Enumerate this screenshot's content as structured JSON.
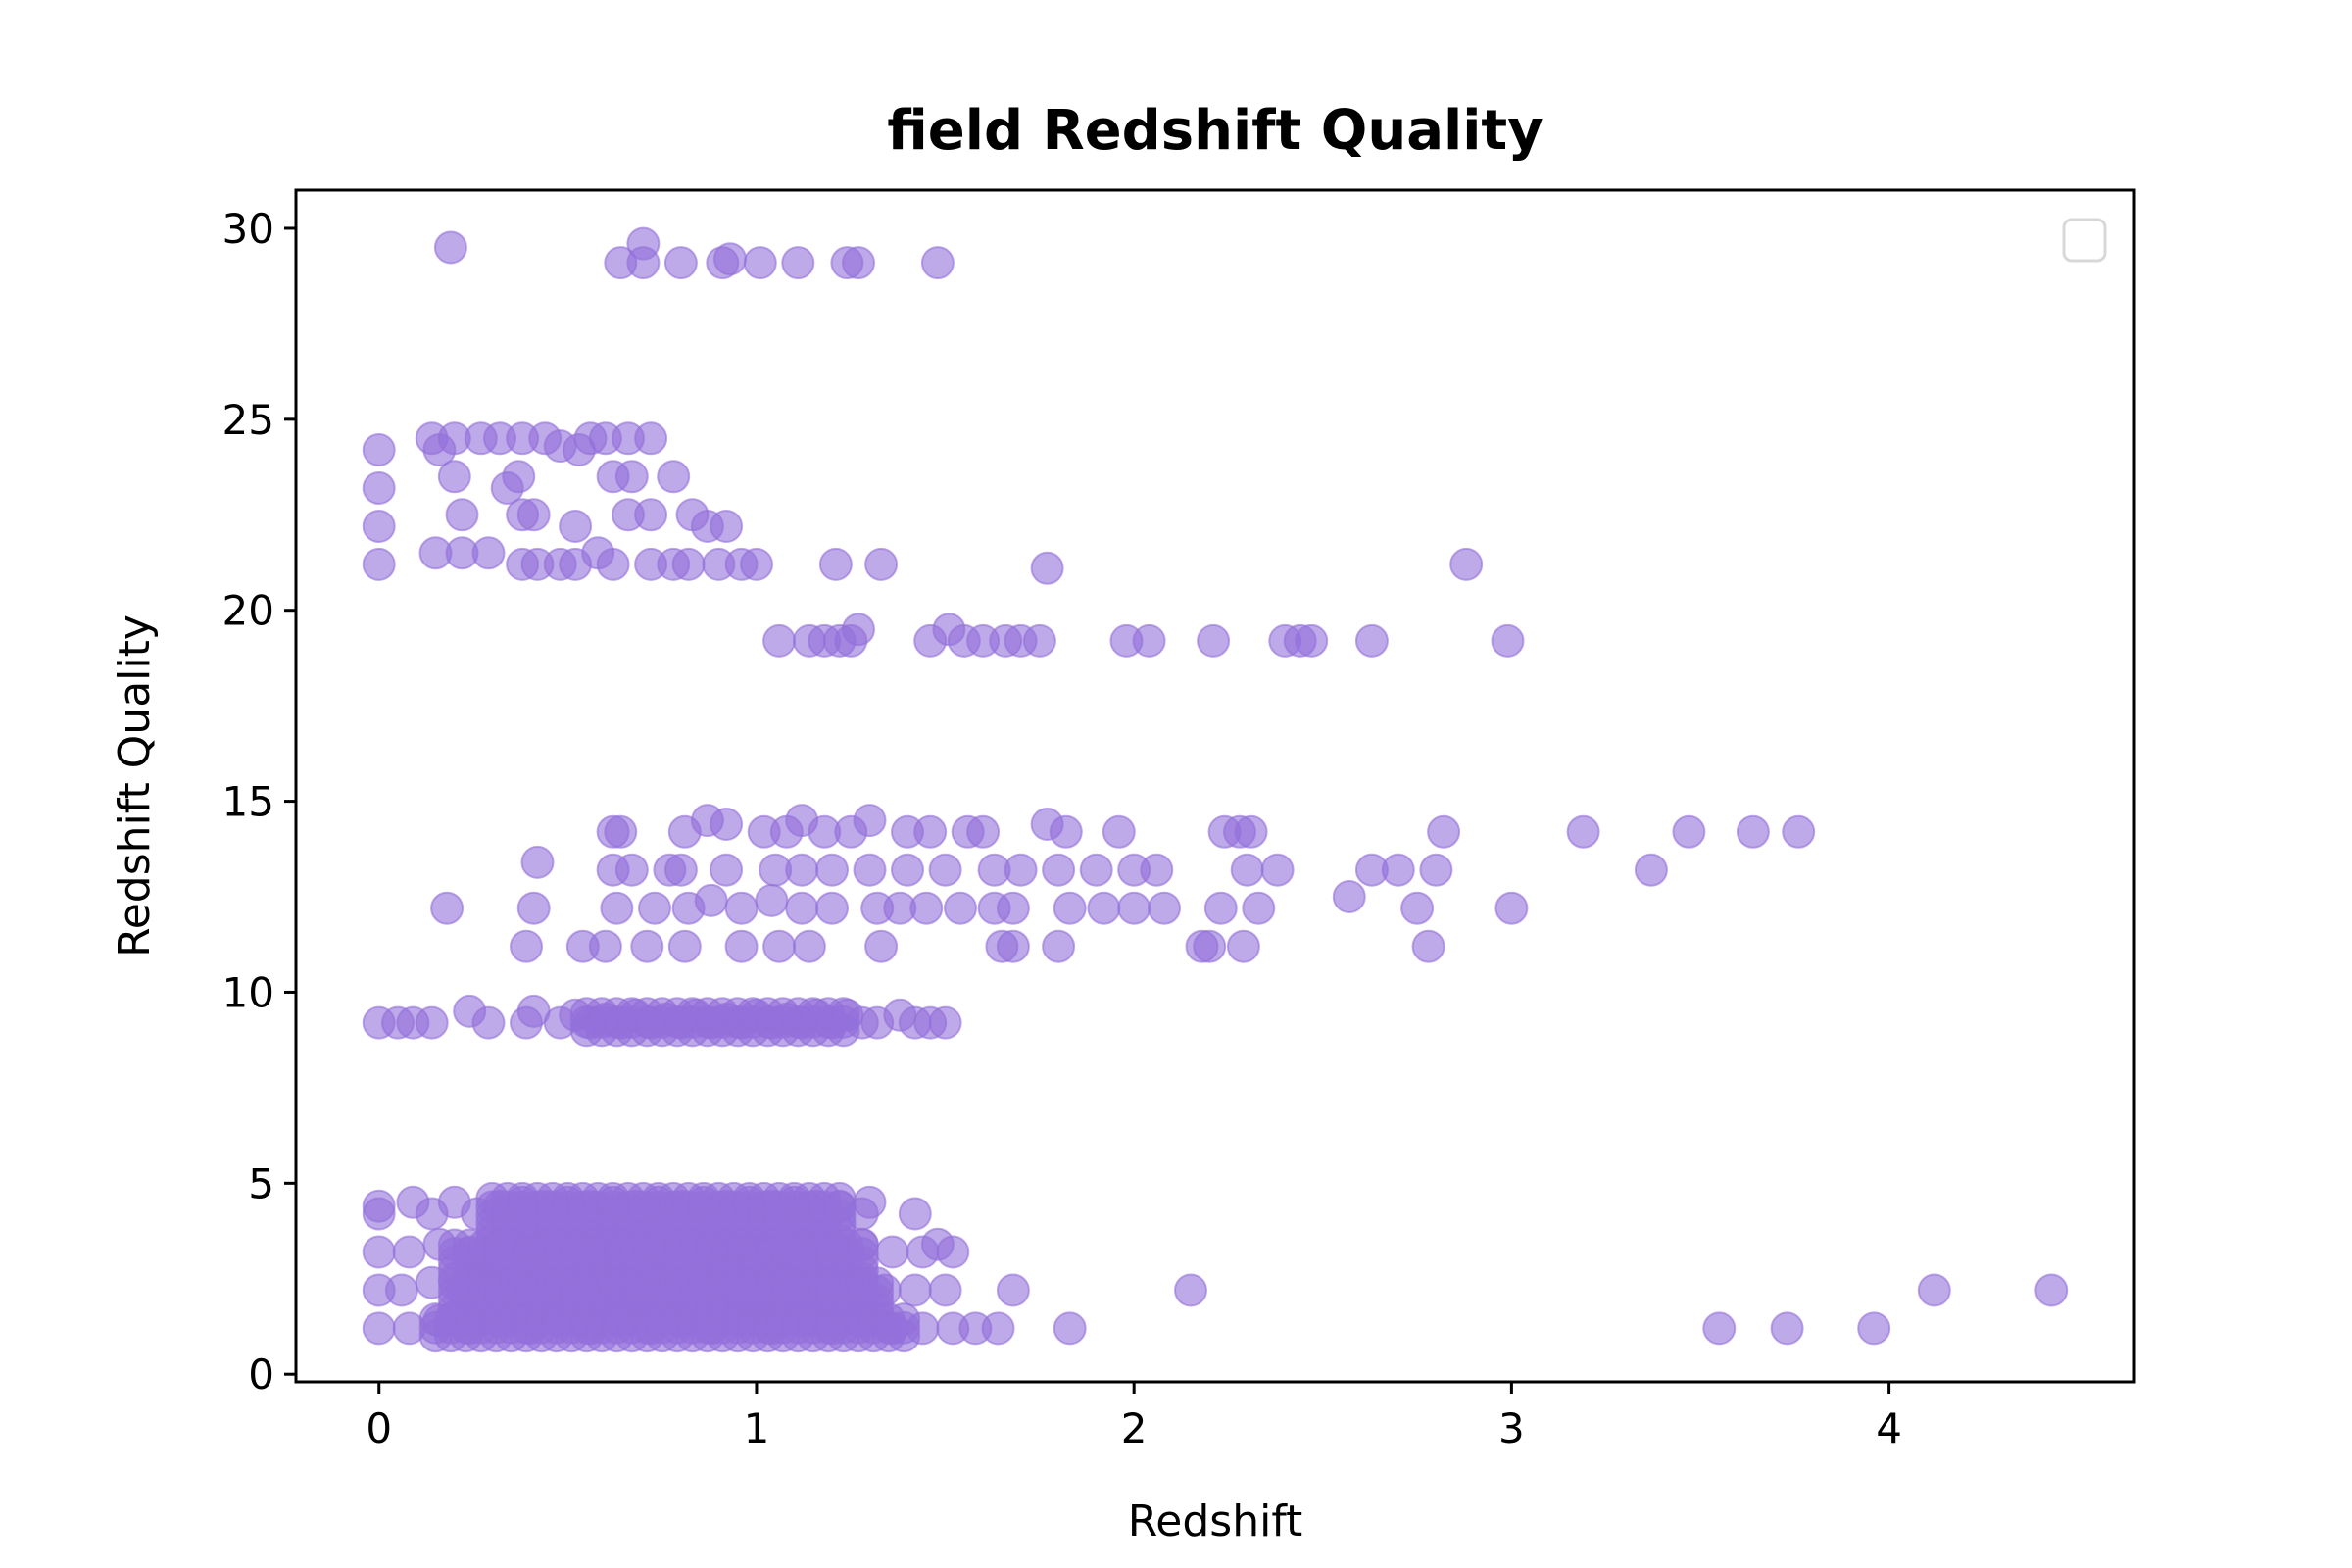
{
  "chart_data": {
    "type": "scatter",
    "title": "field Redshift Quality",
    "xlabel": "Redshift",
    "ylabel": "Redshift Quality",
    "xlim": [
      -0.22,
      4.65
    ],
    "ylim": [
      -0.2,
      31.0
    ],
    "xticks": [
      0,
      1,
      2,
      3,
      4
    ],
    "yticks": [
      0,
      5,
      10,
      15,
      20,
      25,
      30
    ],
    "grid": false,
    "legend": "top-right (empty)",
    "marker_color": "#9370DB",
    "marker_alpha": 0.6,
    "series": [
      {
        "points": [
          [
            0.19,
            29.5
          ],
          [
            0.64,
            29.1
          ],
          [
            0.7,
            29.6
          ],
          [
            0.7,
            29.1
          ],
          [
            0.8,
            29.1
          ],
          [
            0.91,
            29.1
          ],
          [
            0.93,
            29.2
          ],
          [
            1.01,
            29.1
          ],
          [
            1.11,
            29.1
          ],
          [
            1.24,
            29.1
          ],
          [
            1.27,
            29.1
          ],
          [
            1.48,
            29.1
          ],
          [
            0.0,
            24.2
          ],
          [
            0.0,
            23.2
          ],
          [
            0.0,
            22.2
          ],
          [
            0.0,
            21.2
          ],
          [
            0.14,
            24.5
          ],
          [
            0.16,
            24.2
          ],
          [
            0.2,
            24.5
          ],
          [
            0.27,
            24.5
          ],
          [
            0.32,
            24.5
          ],
          [
            0.38,
            24.5
          ],
          [
            0.44,
            24.5
          ],
          [
            0.48,
            24.3
          ],
          [
            0.53,
            24.2
          ],
          [
            0.56,
            24.5
          ],
          [
            0.6,
            24.5
          ],
          [
            0.66,
            24.5
          ],
          [
            0.72,
            24.5
          ],
          [
            0.2,
            23.5
          ],
          [
            0.34,
            23.2
          ],
          [
            0.37,
            23.5
          ],
          [
            0.62,
            23.5
          ],
          [
            0.67,
            23.5
          ],
          [
            0.78,
            23.5
          ],
          [
            0.22,
            22.5
          ],
          [
            0.38,
            22.5
          ],
          [
            0.41,
            22.5
          ],
          [
            0.52,
            22.2
          ],
          [
            0.66,
            22.5
          ],
          [
            0.72,
            22.5
          ],
          [
            0.83,
            22.5
          ],
          [
            0.87,
            22.2
          ],
          [
            0.92,
            22.2
          ],
          [
            0.15,
            21.5
          ],
          [
            0.22,
            21.5
          ],
          [
            0.29,
            21.5
          ],
          [
            0.38,
            21.2
          ],
          [
            0.42,
            21.2
          ],
          [
            0.48,
            21.2
          ],
          [
            0.52,
            21.2
          ],
          [
            0.58,
            21.5
          ],
          [
            0.62,
            21.2
          ],
          [
            0.72,
            21.2
          ],
          [
            0.78,
            21.2
          ],
          [
            0.82,
            21.2
          ],
          [
            0.9,
            21.2
          ],
          [
            0.96,
            21.2
          ],
          [
            1.0,
            21.2
          ],
          [
            1.21,
            21.2
          ],
          [
            1.33,
            21.2
          ],
          [
            1.77,
            21.1
          ],
          [
            2.88,
            21.2
          ],
          [
            1.06,
            19.2
          ],
          [
            1.14,
            19.2
          ],
          [
            1.18,
            19.2
          ],
          [
            1.22,
            19.2
          ],
          [
            1.25,
            19.2
          ],
          [
            1.27,
            19.5
          ],
          [
            1.46,
            19.2
          ],
          [
            1.51,
            19.5
          ],
          [
            1.55,
            19.2
          ],
          [
            1.6,
            19.2
          ],
          [
            1.66,
            19.2
          ],
          [
            1.7,
            19.2
          ],
          [
            1.75,
            19.2
          ],
          [
            1.98,
            19.2
          ],
          [
            2.04,
            19.2
          ],
          [
            2.21,
            19.2
          ],
          [
            2.4,
            19.2
          ],
          [
            2.44,
            19.2
          ],
          [
            2.47,
            19.2
          ],
          [
            2.63,
            19.2
          ],
          [
            2.99,
            19.2
          ],
          [
            0.62,
            14.2
          ],
          [
            0.64,
            14.2
          ],
          [
            0.81,
            14.2
          ],
          [
            0.87,
            14.5
          ],
          [
            0.92,
            14.4
          ],
          [
            1.02,
            14.2
          ],
          [
            1.08,
            14.2
          ],
          [
            1.12,
            14.5
          ],
          [
            1.18,
            14.2
          ],
          [
            1.25,
            14.2
          ],
          [
            1.3,
            14.5
          ],
          [
            1.4,
            14.2
          ],
          [
            1.46,
            14.2
          ],
          [
            1.56,
            14.2
          ],
          [
            1.6,
            14.2
          ],
          [
            1.77,
            14.4
          ],
          [
            1.82,
            14.2
          ],
          [
            1.96,
            14.2
          ],
          [
            2.24,
            14.2
          ],
          [
            2.28,
            14.2
          ],
          [
            2.31,
            14.2
          ],
          [
            2.82,
            14.2
          ],
          [
            3.19,
            14.2
          ],
          [
            3.47,
            14.2
          ],
          [
            3.64,
            14.2
          ],
          [
            3.76,
            14.2
          ],
          [
            0.42,
            13.4
          ],
          [
            0.62,
            13.2
          ],
          [
            0.67,
            13.2
          ],
          [
            0.77,
            13.2
          ],
          [
            0.8,
            13.2
          ],
          [
            0.92,
            13.2
          ],
          [
            1.05,
            13.2
          ],
          [
            1.12,
            13.2
          ],
          [
            1.2,
            13.2
          ],
          [
            1.3,
            13.2
          ],
          [
            1.4,
            13.2
          ],
          [
            1.5,
            13.2
          ],
          [
            1.63,
            13.2
          ],
          [
            1.7,
            13.2
          ],
          [
            1.8,
            13.2
          ],
          [
            1.9,
            13.2
          ],
          [
            2.0,
            13.2
          ],
          [
            2.06,
            13.2
          ],
          [
            2.3,
            13.2
          ],
          [
            2.38,
            13.2
          ],
          [
            2.63,
            13.2
          ],
          [
            2.7,
            13.2
          ],
          [
            2.8,
            13.2
          ],
          [
            3.37,
            13.2
          ],
          [
            0.18,
            12.2
          ],
          [
            0.41,
            12.2
          ],
          [
            0.63,
            12.2
          ],
          [
            0.73,
            12.2
          ],
          [
            0.82,
            12.2
          ],
          [
            0.88,
            12.4
          ],
          [
            0.96,
            12.2
          ],
          [
            1.04,
            12.4
          ],
          [
            1.12,
            12.2
          ],
          [
            1.2,
            12.2
          ],
          [
            1.32,
            12.2
          ],
          [
            1.38,
            12.2
          ],
          [
            1.45,
            12.2
          ],
          [
            1.54,
            12.2
          ],
          [
            1.63,
            12.2
          ],
          [
            1.68,
            12.2
          ],
          [
            1.83,
            12.2
          ],
          [
            1.92,
            12.2
          ],
          [
            2.0,
            12.2
          ],
          [
            2.08,
            12.2
          ],
          [
            2.23,
            12.2
          ],
          [
            2.33,
            12.2
          ],
          [
            2.57,
            12.5
          ],
          [
            2.75,
            12.2
          ],
          [
            3.0,
            12.2
          ],
          [
            0.39,
            11.2
          ],
          [
            0.54,
            11.2
          ],
          [
            0.6,
            11.2
          ],
          [
            0.71,
            11.2
          ],
          [
            0.81,
            11.2
          ],
          [
            0.96,
            11.2
          ],
          [
            1.06,
            11.2
          ],
          [
            1.14,
            11.2
          ],
          [
            1.33,
            11.2
          ],
          [
            1.65,
            11.2
          ],
          [
            1.68,
            11.2
          ],
          [
            1.8,
            11.2
          ],
          [
            2.18,
            11.2
          ],
          [
            2.2,
            11.2
          ],
          [
            2.29,
            11.2
          ],
          [
            2.78,
            11.2
          ],
          [
            0.0,
            9.2
          ],
          [
            0.05,
            9.2
          ],
          [
            0.09,
            9.2
          ],
          [
            0.14,
            9.2
          ],
          [
            0.24,
            9.5
          ],
          [
            0.29,
            9.2
          ],
          [
            0.39,
            9.2
          ],
          [
            0.41,
            9.5
          ],
          [
            0.48,
            9.2
          ],
          [
            0.52,
            9.4
          ],
          [
            0.56,
            9.2
          ],
          [
            0.6,
            9.3
          ],
          [
            0.64,
            9.2
          ],
          [
            0.68,
            9.4
          ],
          [
            0.72,
            9.2
          ],
          [
            0.76,
            9.3
          ],
          [
            0.8,
            9.2
          ],
          [
            0.84,
            9.4
          ],
          [
            0.88,
            9.2
          ],
          [
            0.92,
            9.3
          ],
          [
            0.96,
            9.2
          ],
          [
            1.0,
            9.4
          ],
          [
            1.04,
            9.2
          ],
          [
            1.08,
            9.3
          ],
          [
            1.12,
            9.2
          ],
          [
            1.16,
            9.4
          ],
          [
            1.2,
            9.2
          ],
          [
            1.24,
            9.4
          ],
          [
            1.28,
            9.2
          ],
          [
            1.32,
            9.2
          ],
          [
            1.38,
            9.4
          ],
          [
            1.42,
            9.2
          ],
          [
            1.46,
            9.2
          ],
          [
            1.5,
            9.2
          ],
          [
            0.0,
            4.4
          ],
          [
            0.0,
            4.2
          ],
          [
            0.09,
            4.5
          ],
          [
            0.14,
            4.2
          ],
          [
            0.2,
            4.5
          ],
          [
            0.26,
            4.2
          ],
          [
            0.32,
            4.4
          ],
          [
            0.38,
            4.5
          ],
          [
            0.44,
            4.4
          ],
          [
            0.5,
            4.5
          ],
          [
            0.56,
            4.4
          ],
          [
            0.62,
            4.5
          ],
          [
            0.68,
            4.4
          ],
          [
            0.74,
            4.5
          ],
          [
            0.8,
            4.4
          ],
          [
            0.86,
            4.5
          ],
          [
            0.92,
            4.4
          ],
          [
            0.98,
            4.5
          ],
          [
            1.04,
            4.4
          ],
          [
            1.1,
            4.5
          ],
          [
            1.16,
            4.4
          ],
          [
            1.22,
            4.4
          ],
          [
            1.28,
            4.2
          ],
          [
            1.3,
            4.5
          ],
          [
            1.42,
            4.2
          ],
          [
            0.0,
            3.2
          ],
          [
            0.08,
            3.2
          ],
          [
            0.16,
            3.4
          ],
          [
            0.24,
            3.2
          ],
          [
            0.32,
            3.4
          ],
          [
            0.4,
            3.2
          ],
          [
            0.48,
            3.4
          ],
          [
            0.56,
            3.2
          ],
          [
            0.64,
            3.4
          ],
          [
            0.72,
            3.2
          ],
          [
            0.8,
            3.4
          ],
          [
            0.88,
            3.2
          ],
          [
            0.96,
            3.4
          ],
          [
            1.04,
            3.2
          ],
          [
            1.12,
            3.4
          ],
          [
            1.2,
            3.2
          ],
          [
            1.28,
            3.4
          ],
          [
            1.36,
            3.2
          ],
          [
            1.44,
            3.2
          ],
          [
            1.48,
            3.4
          ],
          [
            1.52,
            3.2
          ],
          [
            0.0,
            2.2
          ],
          [
            0.06,
            2.2
          ],
          [
            0.14,
            2.4
          ],
          [
            0.22,
            2.2
          ],
          [
            0.3,
            2.4
          ],
          [
            0.38,
            2.2
          ],
          [
            0.46,
            2.4
          ],
          [
            0.54,
            2.2
          ],
          [
            0.62,
            2.4
          ],
          [
            0.7,
            2.2
          ],
          [
            0.78,
            2.4
          ],
          [
            0.86,
            2.2
          ],
          [
            0.94,
            2.4
          ],
          [
            1.02,
            2.2
          ],
          [
            1.1,
            2.4
          ],
          [
            1.18,
            2.2
          ],
          [
            1.26,
            2.4
          ],
          [
            1.34,
            2.2
          ],
          [
            1.42,
            2.2
          ],
          [
            1.5,
            2.2
          ],
          [
            1.68,
            2.2
          ],
          [
            2.15,
            2.2
          ],
          [
            4.12,
            2.2
          ],
          [
            4.43,
            2.2
          ],
          [
            0.0,
            1.2
          ],
          [
            0.08,
            1.2
          ],
          [
            0.16,
            1.4
          ],
          [
            0.24,
            1.2
          ],
          [
            0.32,
            1.4
          ],
          [
            0.4,
            1.2
          ],
          [
            0.48,
            1.4
          ],
          [
            0.56,
            1.2
          ],
          [
            0.64,
            1.4
          ],
          [
            0.72,
            1.2
          ],
          [
            0.8,
            1.4
          ],
          [
            0.88,
            1.2
          ],
          [
            0.96,
            1.4
          ],
          [
            1.04,
            1.2
          ],
          [
            1.12,
            1.4
          ],
          [
            1.2,
            1.2
          ],
          [
            1.28,
            1.4
          ],
          [
            1.36,
            1.2
          ],
          [
            1.44,
            1.2
          ],
          [
            1.52,
            1.2
          ],
          [
            1.58,
            1.2
          ],
          [
            1.64,
            1.2
          ],
          [
            1.83,
            1.2
          ],
          [
            3.55,
            1.2
          ],
          [
            3.73,
            1.2
          ],
          [
            3.96,
            1.2
          ]
        ],
        "dense_blocks": [
          {
            "x": [
              0.3,
              1.25
            ],
            "y": [
              3.5,
              4.6
            ]
          },
          {
            "x": [
              0.2,
              1.3
            ],
            "y": [
              2.5,
              3.5
            ]
          },
          {
            "x": [
              0.2,
              1.35
            ],
            "y": [
              1.5,
              2.5
            ]
          },
          {
            "x": [
              0.15,
              1.4
            ],
            "y": [
              1.0,
              1.5
            ]
          },
          {
            "x": [
              0.55,
              1.25
            ],
            "y": [
              9.0,
              9.6
            ]
          }
        ]
      }
    ]
  }
}
